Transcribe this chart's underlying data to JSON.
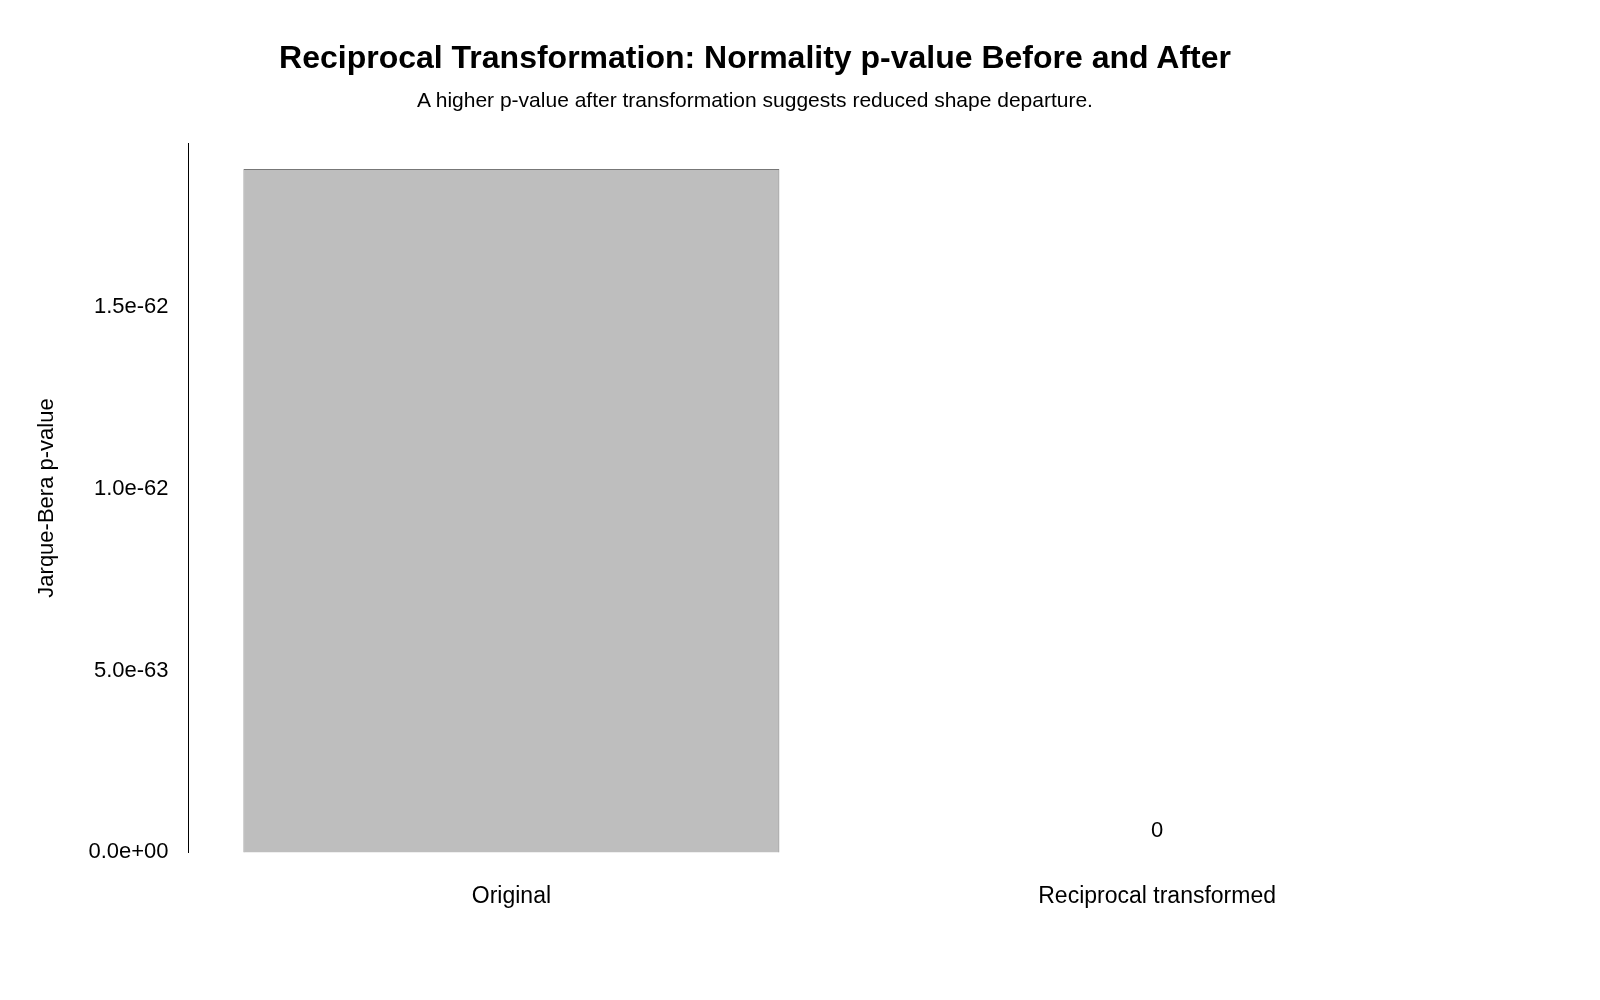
{
  "chart_data": {
    "type": "bar",
    "title": "Reciprocal Transformation: Normality p-value Before and After",
    "subtitle": "A higher p-value after transformation suggests reduced shape departure.",
    "ylabel": "Jarque-Bera p-value",
    "categories": [
      "Original",
      "Reciprocal transformed"
    ],
    "values": [
      1.88e-62,
      0
    ],
    "color": "#bebebe",
    "value_labels": [
      null,
      "0"
    ],
    "ylim": [
      0,
      1.95e-62
    ],
    "yticks": [
      {
        "value": 0,
        "label": "0.0e+00"
      },
      {
        "value": 5e-63,
        "label": "5.0e-63"
      },
      {
        "value": 1e-62,
        "label": "1.0e-62"
      },
      {
        "value": 1.5e-62,
        "label": "1.5e-62"
      }
    ]
  }
}
